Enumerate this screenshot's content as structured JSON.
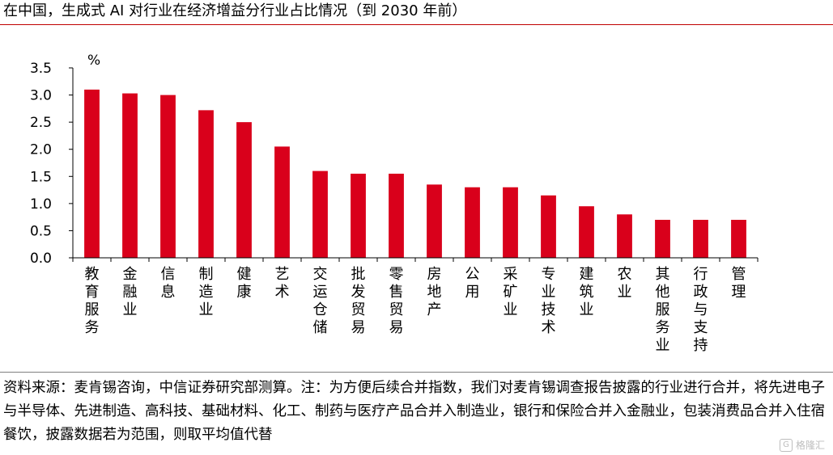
{
  "title": "在中国，生成式 AI 对行业在经济增益分行业占比情况（到 2030 年前）",
  "chart_data": {
    "type": "bar",
    "unit_label": "%",
    "ylim": [
      0,
      3.5
    ],
    "yticks": [
      "0.0",
      "0.5",
      "1.0",
      "1.5",
      "2.0",
      "2.5",
      "3.0",
      "3.5"
    ],
    "ytick_values": [
      0,
      0.5,
      1.0,
      1.5,
      2.0,
      2.5,
      3.0,
      3.5
    ],
    "categories": [
      "教育服务",
      "金融业",
      "信息",
      "制造业",
      "健康",
      "艺术",
      "交运仓储",
      "批发贸易",
      "零售贸易",
      "房地产",
      "公用",
      "采矿业",
      "专业技术",
      "建筑业",
      "农业",
      "其他服务业",
      "行政与支持",
      "管理"
    ],
    "values": [
      3.1,
      3.03,
      3.0,
      2.72,
      2.5,
      2.05,
      1.6,
      1.55,
      1.55,
      1.35,
      1.3,
      1.3,
      1.15,
      0.95,
      0.8,
      0.7,
      0.7,
      0.7
    ],
    "bar_color": "#d9001b",
    "grid": false
  },
  "note": "资料来源：麦肯锡咨询，中信证券研究部测算。注：为方便后续合并指数，我们对麦肯锡调查报告披露的行业进行合并，将先进电子与半导体、先进制造、高科技、基础材料、化工、制药与医疗产品合并入制造业，银行和保险合并入金融业，包装消费品合并入住宿餐饮，披露数据若为范围，则取平均值代替",
  "watermark": "格隆汇"
}
